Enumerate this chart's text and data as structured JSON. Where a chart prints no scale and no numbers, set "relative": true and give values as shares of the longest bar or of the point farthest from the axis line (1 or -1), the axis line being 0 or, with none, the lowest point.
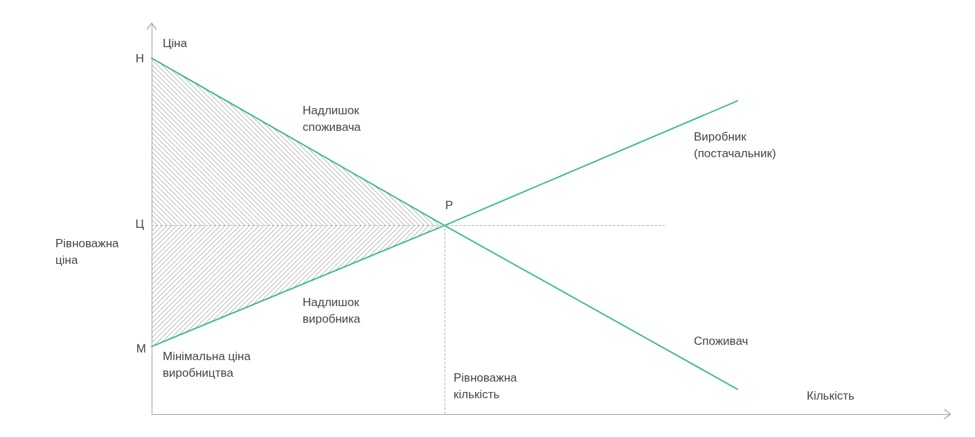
{
  "chart_data": {
    "type": "line",
    "relative": true,
    "xlabel": "Кількість",
    "ylabel": "Ціна",
    "categories": [
      null,
      null,
      null
    ],
    "series": [
      {
        "name": "Споживач",
        "color": "#3dbb8a",
        "values": [
          1,
          0.53,
          0.07
        ],
        "lower": [
          0.53,
          0.53,
          null
        ],
        "upper": [
          1,
          0.53,
          null
        ]
      },
      {
        "name": "Виробник (постачальник)",
        "color": "#3dbb8a",
        "values": [
          0.19,
          0.53,
          0.88
        ],
        "lower": [
          0.19,
          0.53,
          null
        ],
        "upper": [
          0.53,
          0.53,
          null
        ]
      }
    ],
    "ref_lines": [
      {
        "axis": "y",
        "value": 0.53,
        "label": "Рівноважна ціна",
        "color": "#b3b3b3",
        "line_style": "dashed"
      }
    ],
    "annotations": [
      "Надлишок споживача",
      "Надлишок виробника",
      "Н",
      "Ц",
      "М",
      {
        "text": "Р",
        "y": 0.53
      },
      "Мінімальна ціна виробництва",
      "Рівноважна кількість"
    ]
  }
}
